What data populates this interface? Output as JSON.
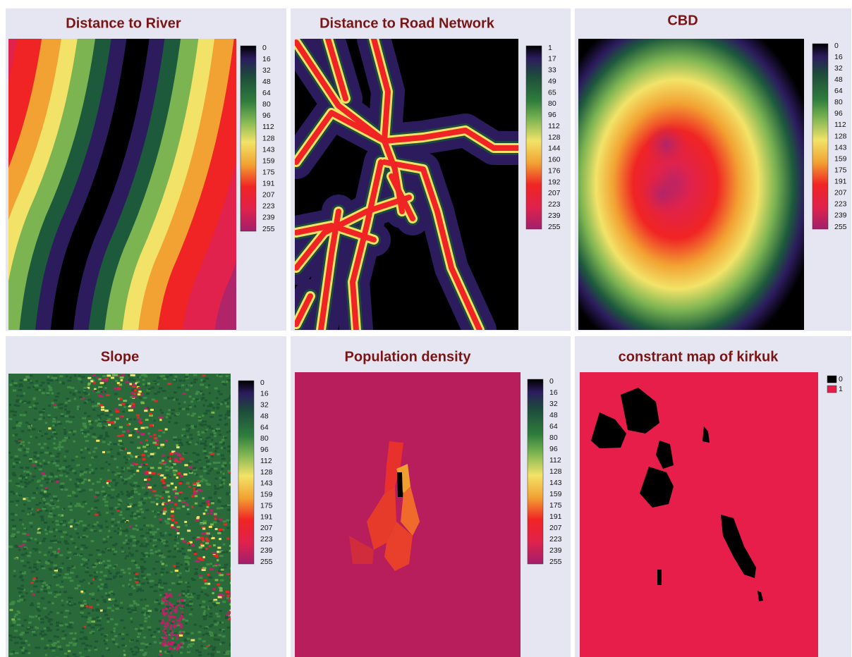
{
  "panels": [
    {
      "title": "Distance to River",
      "legend": [
        0,
        16,
        32,
        48,
        64,
        80,
        96,
        112,
        128,
        143,
        159,
        175,
        191,
        207,
        223,
        239,
        255
      ]
    },
    {
      "title": "Distance to Road Network",
      "legend": [
        1,
        17,
        33,
        49,
        65,
        80,
        96,
        112,
        128,
        144,
        160,
        176,
        192,
        207,
        223,
        239,
        255
      ]
    },
    {
      "title": "CBD",
      "legend": [
        0,
        16,
        32,
        48,
        64,
        80,
        96,
        112,
        128,
        143,
        159,
        175,
        191,
        207,
        223,
        239,
        255
      ]
    },
    {
      "title": "Slope",
      "legend": [
        0,
        16,
        32,
        48,
        64,
        80,
        96,
        112,
        128,
        143,
        159,
        175,
        191,
        207,
        223,
        239,
        255
      ]
    },
    {
      "title": "Population density",
      "legend": [
        0,
        16,
        32,
        48,
        64,
        80,
        96,
        112,
        128,
        143,
        159,
        175,
        191,
        207,
        223,
        239,
        255
      ]
    },
    {
      "title": "constrant map of kirkuk",
      "legend": [
        0,
        1
      ]
    }
  ]
}
